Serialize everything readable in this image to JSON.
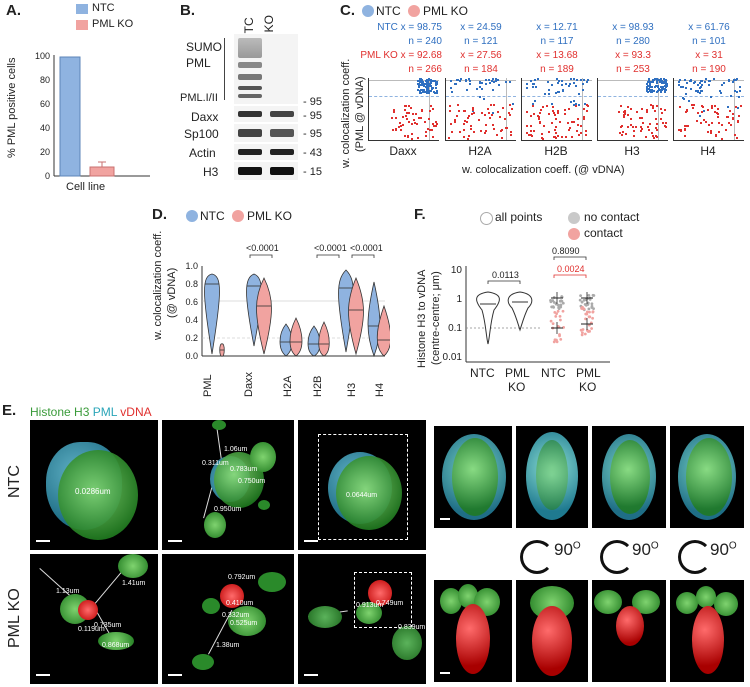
{
  "colors": {
    "ntc": "#8fb3e0",
    "pml": "#f1a3a0",
    "blue_text": "#2f6fc0",
    "red_text": "#e0302e",
    "green": "#3a9b3a",
    "cyan": "#2aa5b8"
  },
  "panelA": {
    "letter": "A.",
    "legend": [
      "NTC",
      "PML KO"
    ],
    "ylabel": "% PML positive cells",
    "xlabel": "Cell line",
    "yticks": [
      "0",
      "20",
      "40",
      "60",
      "80",
      "100"
    ]
  },
  "panelB": {
    "letter": "B.",
    "lanes": [
      "NTC",
      "PML KO"
    ],
    "rows": [
      "SUMO",
      "PML",
      "PML.I/II",
      "Daxx",
      "Sp100",
      "Actin",
      "H3"
    ],
    "markers": [
      "- 95",
      "- 95",
      "- 95",
      "- 43",
      "- 15"
    ]
  },
  "panelC": {
    "letter": "C.",
    "legend": [
      "NTC",
      "PML KO"
    ],
    "ylabel1": "w. colocalization coeff.",
    "ylabel2": "(PML @ vDNA)",
    "xlabel": "w. colocalization coeff. (@ vDNA)",
    "plots": [
      {
        "name": "Daxx",
        "ntc_x": "NTC x = 98.75",
        "ntc_n": "n = 240",
        "pml_x": "PML KO x = 92.68",
        "pml_n": "n = 266"
      },
      {
        "name": "H2A",
        "ntc_x": "x = 24.59",
        "ntc_n": "n = 121",
        "pml_x": "x = 27.56",
        "pml_n": "n = 184"
      },
      {
        "name": "H2B",
        "ntc_x": "x = 12.71",
        "ntc_n": "n = 117",
        "pml_x": "x = 13.68",
        "pml_n": "n = 189"
      },
      {
        "name": "H3",
        "ntc_x": "x = 98.93",
        "ntc_n": "n = 280",
        "pml_x": "x = 93.3",
        "pml_n": "n = 253"
      },
      {
        "name": "H4",
        "ntc_x": "x = 61.76",
        "ntc_n": "n = 101",
        "pml_x": "x = 31",
        "pml_n": "n = 190"
      }
    ]
  },
  "panelD": {
    "letter": "D.",
    "legend": [
      "NTC",
      "PML KO"
    ],
    "ylabel1": "w. colocalization coeff.",
    "ylabel2": "(@ vDNA)",
    "yticks": [
      "0.0",
      "0.2",
      "0.4",
      "0.6",
      "0.8",
      "1.0"
    ],
    "categories": [
      "PML",
      "Daxx",
      "H2A",
      "H2B",
      "H3",
      "H4"
    ],
    "pvals": [
      "<0.0001",
      "<0.0001",
      "<0.0001"
    ]
  },
  "panelF": {
    "letter": "F.",
    "legend": [
      "all points",
      "no contact",
      "contact"
    ],
    "ylabel1": "Histone H3 to vDNA",
    "ylabel2": "(centre-centre; μm)",
    "yticks": [
      "10",
      "1",
      "0.1",
      "0.01"
    ],
    "pval1": "0.0113",
    "pval2": "0.8090",
    "pval3": "0.0024",
    "xcats": [
      "NTC",
      "PML",
      "KO",
      "NTC",
      "PML",
      "KO"
    ]
  },
  "panelE": {
    "letter": "E.",
    "title_parts": [
      "Histone H3",
      "PML",
      "vDNA"
    ],
    "row_labels": [
      "NTC",
      "PML KO"
    ],
    "rotation": "90",
    "rotation_sup": "O",
    "measurements": {
      "ntc1": "0.0286um",
      "ntc2": [
        "1.06um",
        "0.311um",
        "0.783um",
        "0.750um",
        "0.950um"
      ],
      "ntc3": "0.0644um",
      "pml1": [
        "1.13um",
        "1.41um",
        "0.119um",
        "0.735um",
        "0.868um"
      ],
      "pml2": [
        "0.792um",
        "0.410um",
        "0.332um",
        "0.525um",
        "1.38um"
      ],
      "pml3": [
        "0.913um",
        "0.749um",
        "0.839um"
      ]
    }
  }
}
